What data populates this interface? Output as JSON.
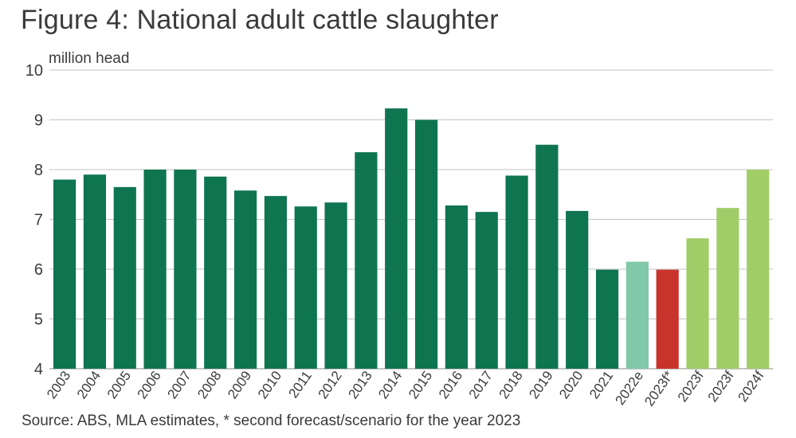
{
  "figure": {
    "title": "Figure 4: National adult cattle slaughter",
    "source": "Source: ABS, MLA estimates,  * second forecast/scenario for the year 2023"
  },
  "colors": {
    "actual": "#0e7550",
    "estimate": "#80c8a8",
    "scenario": "#c8342b",
    "forecast": "#a0cd68",
    "grid": "#c4c4c4",
    "text": "#3c3c3c"
  },
  "chart_data": {
    "type": "bar",
    "ylabel": "million head",
    "ylim": [
      4,
      10
    ],
    "yticks": [
      4,
      5,
      6,
      7,
      8,
      9,
      10
    ],
    "grid": true,
    "categories": [
      "2003",
      "2004",
      "2005",
      "2006",
      "2007",
      "2008",
      "2009",
      "2010",
      "2011",
      "2012",
      "2013",
      "2014",
      "2015",
      "2016",
      "2017",
      "2018",
      "2019",
      "2020",
      "2021",
      "2022e",
      "2023f*",
      "2023f",
      "2023f",
      "2024f"
    ],
    "values": [
      7.8,
      7.9,
      7.65,
      8.0,
      8.0,
      7.86,
      7.58,
      7.47,
      7.26,
      7.34,
      8.35,
      9.23,
      9.0,
      7.28,
      7.15,
      7.88,
      8.5,
      7.17,
      5.99,
      6.15,
      5.99,
      6.62,
      7.23,
      8.0
    ],
    "bar_colors": [
      "actual",
      "actual",
      "actual",
      "actual",
      "actual",
      "actual",
      "actual",
      "actual",
      "actual",
      "actual",
      "actual",
      "actual",
      "actual",
      "actual",
      "actual",
      "actual",
      "actual",
      "actual",
      "actual",
      "estimate",
      "scenario",
      "forecast",
      "forecast",
      "forecast"
    ]
  }
}
